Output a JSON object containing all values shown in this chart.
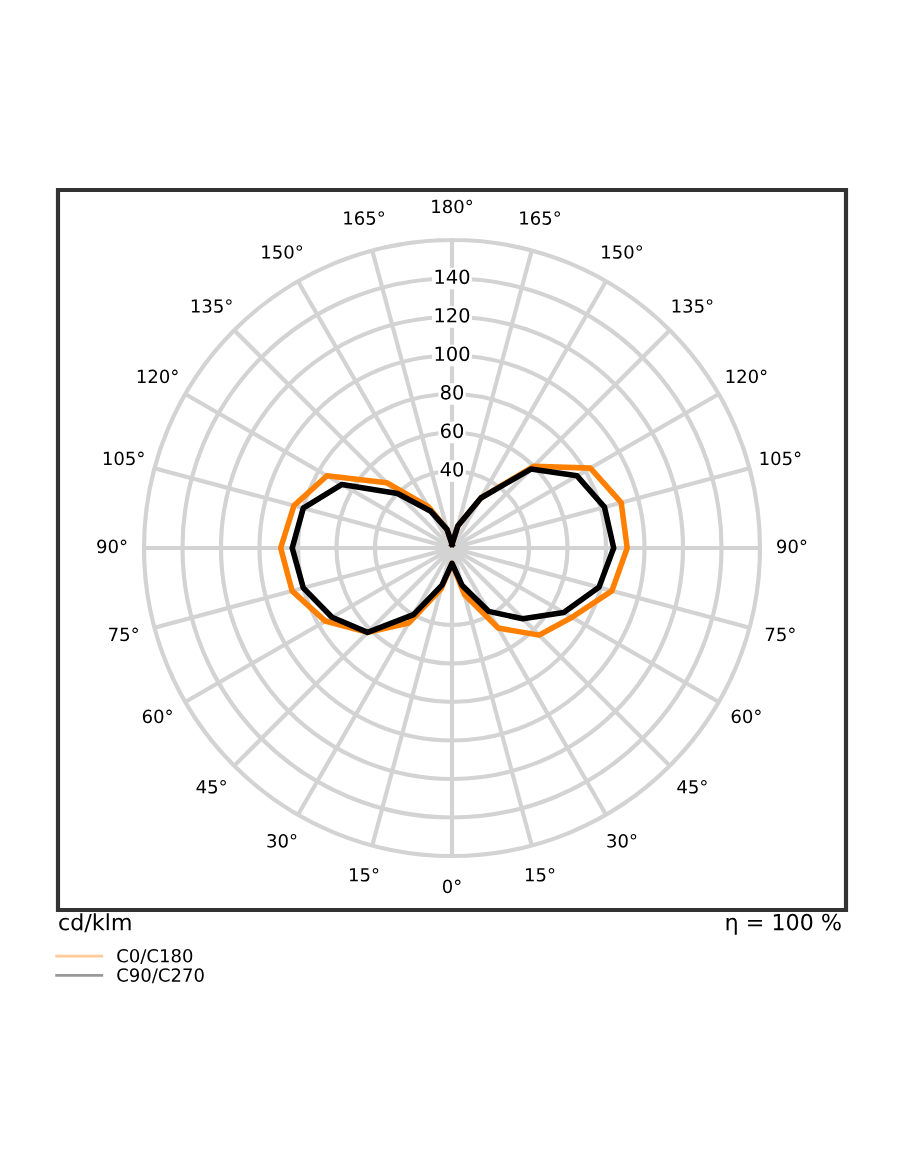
{
  "chart_data": {
    "type": "radar",
    "categories": [
      "180°",
      "165°",
      "150°",
      "135°",
      "120°",
      "105°",
      "90°",
      "75°",
      "60°",
      "45°",
      "30°",
      "15°",
      "0°",
      "15°",
      "30°",
      "45°",
      "60°",
      "75°",
      "90°",
      "105°",
      "120°",
      "135°",
      "150°",
      "165°"
    ],
    "series": [
      {
        "name": "C0/C180",
        "color": "#ff8000",
        "values": [
          2,
          12,
          30,
          60,
          83,
          91,
          91,
          86,
          72,
          64,
          48,
          25,
          8,
          22,
          45,
          62,
          76,
          86,
          89,
          85,
          75,
          48,
          25,
          10
        ]
      },
      {
        "name": "C90/C270",
        "color": "#000000",
        "values": [
          2,
          12,
          30,
          58,
          75,
          82,
          84,
          79,
          67,
          52,
          38,
          20,
          8,
          20,
          40,
          62,
          72,
          80,
          83,
          80,
          66,
          40,
          22,
          10
        ]
      }
    ],
    "ylim": [
      0,
      160
    ],
    "yticks": [
      40,
      60,
      80,
      100,
      120,
      140
    ],
    "grid": true,
    "legend": "bottom left",
    "annotations": [
      "cd/klm",
      "η = 100 %"
    ]
  }
}
